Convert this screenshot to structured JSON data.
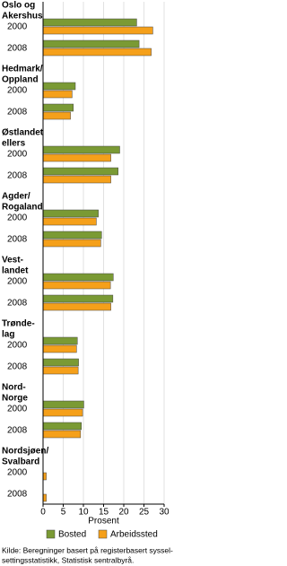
{
  "chart_data": {
    "type": "hbar",
    "groups": [
      [
        "Oslo og",
        "Akershus"
      ],
      [
        "Hedmark/",
        "Oppland"
      ],
      [
        "Østlandet",
        "ellers"
      ],
      [
        "Agder/",
        "Rogaland"
      ],
      [
        "Vest-",
        "landet"
      ],
      [
        "Trønde-",
        "lag"
      ],
      [
        "Nord-",
        "Norge"
      ],
      [
        "Nordsjøen/",
        "Svalbard"
      ]
    ],
    "categories": [
      "2000",
      "2008",
      "2000",
      "2008",
      "2000",
      "2008",
      "2000",
      "2008",
      "2000",
      "2008",
      "2000",
      "2008",
      "2000",
      "2008",
      "2000",
      "2008"
    ],
    "series": [
      {
        "name": "Bosted",
        "color": "#7a9a34",
        "values": [
          23.2,
          23.8,
          8.0,
          7.5,
          19.0,
          18.6,
          13.7,
          14.5,
          17.4,
          17.3,
          8.5,
          8.8,
          10.1,
          9.5,
          0,
          0
        ]
      },
      {
        "name": "Arbeidssted",
        "color": "#f5a01a",
        "values": [
          27.2,
          26.8,
          7.2,
          6.8,
          16.8,
          16.8,
          13.2,
          14.3,
          16.7,
          16.8,
          8.3,
          8.7,
          9.8,
          9.3,
          0.8,
          0.8
        ]
      }
    ],
    "xlabel": "Prosent",
    "xlim": [
      0,
      30
    ],
    "xticks": [
      0,
      5,
      10,
      15,
      20,
      25,
      30
    ],
    "grid": true,
    "source": [
      "Kilde: Beregninger basert på registerbasert syssel-",
      "settingsstatistikk, Statistisk sentralbyrå."
    ]
  }
}
